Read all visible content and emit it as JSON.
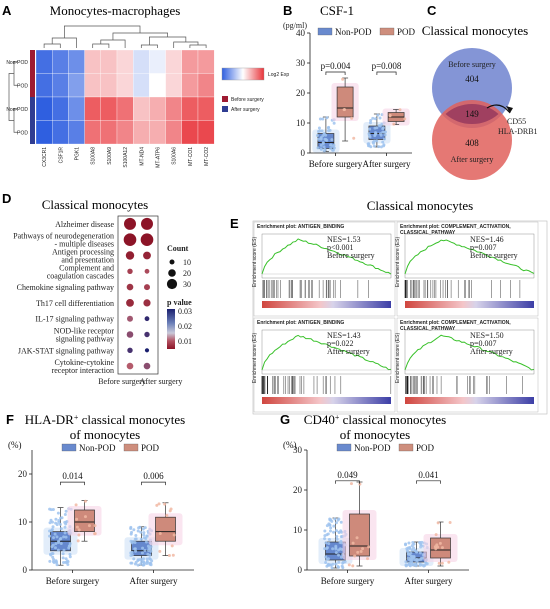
{
  "panel_letters": [
    "A",
    "B",
    "C",
    "D",
    "E",
    "F",
    "G"
  ],
  "colors": {
    "nonpod": "#6f94d8",
    "pod": "#e57a76",
    "heat_low": "#2f5fe0",
    "heat_high": "#e8343a",
    "before_bar": "#9e1b32",
    "after_bar": "#2f3d92",
    "venn_before": "#6f83cf",
    "venn_after": "#e0605c",
    "venn_overlap": "#a04060"
  },
  "panelA": {
    "title": "Monocytes-macrophages",
    "rows": [
      "Non-POD",
      "POD",
      "Non-POD",
      "POD"
    ],
    "columns": [
      "CX3CR1",
      "CSF1R",
      "PGK1",
      "S100A8",
      "S100A9",
      "S100A12",
      "MT-ND4",
      "MT-ATP6",
      "S100A6",
      "MT-CO1",
      "MT-CO2"
    ],
    "values": [
      [
        -0.9,
        -0.8,
        -0.7,
        0.3,
        0.3,
        0.2,
        -0.2,
        -0.1,
        0.2,
        0.5,
        0.5
      ],
      [
        -0.9,
        -0.8,
        -0.6,
        0.3,
        0.3,
        0.2,
        -0.2,
        0.0,
        0.2,
        0.5,
        0.6
      ],
      [
        -1.0,
        -0.9,
        -0.7,
        0.8,
        0.8,
        0.7,
        0.3,
        0.4,
        0.6,
        0.8,
        0.8
      ],
      [
        -1.0,
        -0.9,
        -0.8,
        0.7,
        0.7,
        0.6,
        0.4,
        0.4,
        0.6,
        0.9,
        0.9
      ]
    ],
    "legend_title": "Log2 Exp",
    "group_labels": [
      "Before surgery",
      "After surgery"
    ]
  },
  "panelB": {
    "title": "CSF-1",
    "unit": "(pg/ml)",
    "legend": [
      "Non-POD",
      "POD"
    ],
    "groups": [
      "Before surgery",
      "After surgery"
    ],
    "pvalues": [
      "p=0.004",
      "p=0.008"
    ],
    "yticks": [
      "0",
      "10",
      "20",
      "30",
      "40"
    ],
    "ylim": [
      0,
      40
    ],
    "boxes": [
      {
        "group": "Before surgery",
        "series": "Non-POD",
        "min": 0.5,
        "q1": 1.5,
        "median": 3.5,
        "q3": 6.5,
        "max": 12
      },
      {
        "group": "Before surgery",
        "series": "POD",
        "min": 4,
        "q1": 12,
        "median": 15,
        "q3": 22,
        "max": 25
      },
      {
        "group": "After surgery",
        "series": "Non-POD",
        "min": 2,
        "q1": 4.5,
        "median": 6.5,
        "q3": 9,
        "max": 13
      },
      {
        "group": "After surgery",
        "series": "POD",
        "min": 9.5,
        "q1": 10.5,
        "median": 12,
        "q3": 13.5,
        "max": 14.5
      }
    ]
  },
  "panelC": {
    "title": "Classical monocytes",
    "set_before": "Before surgery",
    "set_after": "After surgery",
    "only_before": "404",
    "overlap": "149",
    "only_after": "408",
    "callout": [
      "CD55",
      "HLA-DRB1"
    ]
  },
  "panelD": {
    "title": "Classical monocytes",
    "pathways": [
      "Alzheimer disease",
      "Pathways of neurodegeneration - multiple diseases",
      "Antigen processing and presentation",
      "Complement and coagulation cascades",
      "Chemokine signaling pathway",
      "Th17 cell differentiation",
      "IL-17 signaling pathway",
      "NOD-like receptor signaling pathway",
      "JAK-STAT signaling pathway",
      "Cytokine-cytokine receptor interaction"
    ],
    "columns": [
      "Before surgery",
      "After surgery"
    ],
    "count_legend_title": "Count",
    "count_legend": [
      "10",
      "20",
      "30"
    ],
    "p_legend_title": "p value",
    "p_legend": [
      "0.03",
      "0.02",
      "0.01"
    ],
    "dots": [
      [
        {
          "count": 32,
          "p": 0.002
        },
        {
          "count": 32,
          "p": 0.002
        }
      ],
      [
        {
          "count": 34,
          "p": 0.002
        },
        {
          "count": 34,
          "p": 0.002
        }
      ],
      [
        {
          "count": 20,
          "p": 0.004
        },
        {
          "count": 18,
          "p": 0.005
        }
      ],
      [
        {
          "count": 10,
          "p": 0.01
        },
        {
          "count": 8,
          "p": 0.012
        }
      ],
      [
        {
          "count": 14,
          "p": 0.008
        },
        {
          "count": 12,
          "p": 0.01
        }
      ],
      [
        {
          "count": 18,
          "p": 0.006
        },
        {
          "count": 16,
          "p": 0.007
        }
      ],
      [
        {
          "count": 12,
          "p": 0.018
        },
        {
          "count": 8,
          "p": 0.028
        }
      ],
      [
        {
          "count": 14,
          "p": 0.02
        },
        {
          "count": 10,
          "p": 0.026
        }
      ],
      [
        {
          "count": 10,
          "p": 0.026
        },
        {
          "count": 6,
          "p": 0.03
        }
      ],
      [
        {
          "count": 14,
          "p": 0.015
        },
        {
          "count": 14,
          "p": 0.02
        }
      ]
    ]
  },
  "panelE": {
    "title": "Classical monocytes",
    "ylabel": "Enrichment score (ES)",
    "plots": [
      {
        "title": "Enrichment plot: ANTIGEN_BINDING",
        "nes": "NES=1.53",
        "p": "p<0.001",
        "group": "Before surgery"
      },
      {
        "title": "Enrichment plot: COMPLEMENT_ACTIVATION, CLASSICAL_PATHWAY",
        "nes": "NES=1.46",
        "p": "p=0.007",
        "group": "Before surgery"
      },
      {
        "title": "Enrichment plot: ANTIGEN_BINDING",
        "nes": "NES=1.43",
        "p": "p=0.022",
        "group": "After surgery"
      },
      {
        "title": "Enrichment plot: COMPLEMENT_ACTIVATION, CLASSICAL_PATHWAY",
        "nes": "NES=1.50",
        "p": "p=0.007",
        "group": "After surgery"
      }
    ]
  },
  "chart_data": [
    {
      "type": "box",
      "id": "F",
      "title": "HLA-DR⁺ classical monocytes of monocytes",
      "ylabel": "(%)",
      "groups": [
        "Before surgery",
        "After surgery"
      ],
      "legend": [
        "Non-POD",
        "POD"
      ],
      "pvalues": [
        "0.014",
        "0.006"
      ],
      "yticks": [
        "0",
        "10",
        "20"
      ],
      "ylim": [
        0,
        25
      ],
      "boxes": [
        {
          "group": "Before surgery",
          "series": "Non-POD",
          "min": 1,
          "q1": 4,
          "median": 6,
          "q3": 8,
          "max": 13
        },
        {
          "group": "Before surgery",
          "series": "POD",
          "min": 6,
          "q1": 8,
          "median": 10,
          "q3": 12.5,
          "max": 14.5
        },
        {
          "group": "After surgery",
          "series": "Non-POD",
          "min": 1,
          "q1": 3,
          "median": 4,
          "q3": 6,
          "max": 9
        },
        {
          "group": "After surgery",
          "series": "POD",
          "min": 3,
          "q1": 6,
          "median": 8,
          "q3": 11,
          "max": 14
        }
      ]
    },
    {
      "type": "box",
      "id": "G",
      "title": "CD40⁺ classical monocytes of monocytes",
      "ylabel": "(%)",
      "groups": [
        "Before surgery",
        "After surgery"
      ],
      "legend": [
        "Non-POD",
        "POD"
      ],
      "pvalues": [
        "0.049",
        "0.041"
      ],
      "yticks": [
        "0",
        "10",
        "20",
        "30"
      ],
      "ylim": [
        0,
        30
      ],
      "boxes": [
        {
          "group": "Before surgery",
          "series": "Non-POD",
          "min": 0.5,
          "q1": 2.5,
          "median": 4,
          "q3": 7,
          "max": 13
        },
        {
          "group": "Before surgery",
          "series": "POD",
          "min": 1,
          "q1": 3.5,
          "median": 6,
          "q3": 14,
          "max": 22
        },
        {
          "group": "After surgery",
          "series": "Non-POD",
          "min": 1,
          "q1": 2,
          "median": 3,
          "q3": 4.5,
          "max": 7
        },
        {
          "group": "After surgery",
          "series": "POD",
          "min": 1,
          "q1": 3,
          "median": 5,
          "q3": 8,
          "max": 12
        }
      ]
    }
  ]
}
